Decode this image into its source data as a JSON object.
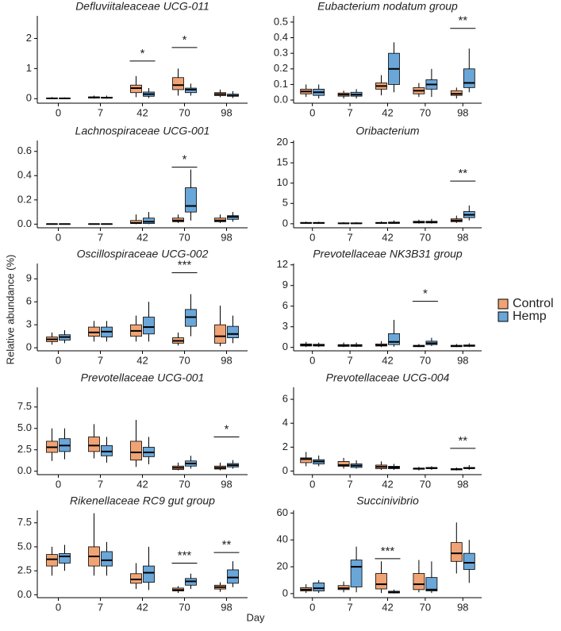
{
  "y_label": "Relative abundance (%)",
  "x_label": "Day",
  "legend": [
    {
      "name": "Control",
      "color": "#f0a374"
    },
    {
      "name": "Hemp",
      "color": "#6aa6d8"
    }
  ],
  "chart_data": [
    {
      "type": "box",
      "title": "Defluviitaleaceae UCG-011",
      "categories": [
        "0",
        "7",
        "42",
        "70",
        "98"
      ],
      "ylim": [
        -0.15,
        2.75
      ],
      "yticks": [
        0,
        1,
        2
      ],
      "series": [
        {
          "color": "#f0a374",
          "min": [
            0,
            0,
            0.05,
            0.1,
            0.05
          ],
          "q1": [
            0,
            0.02,
            0.2,
            0.3,
            0.1
          ],
          "median": [
            0.01,
            0.04,
            0.35,
            0.45,
            0.15
          ],
          "q3": [
            0.02,
            0.06,
            0.45,
            0.7,
            0.2
          ],
          "max": [
            0.05,
            0.1,
            0.75,
            1.0,
            0.3
          ]
        },
        {
          "color": "#6aa6d8",
          "min": [
            0,
            0,
            0.02,
            0.1,
            0.02
          ],
          "q1": [
            0,
            0.02,
            0.08,
            0.2,
            0.08
          ],
          "median": [
            0.01,
            0.03,
            0.15,
            0.3,
            0.1
          ],
          "q3": [
            0.02,
            0.05,
            0.22,
            0.35,
            0.15
          ],
          "max": [
            0.04,
            0.1,
            0.35,
            0.5,
            0.25
          ]
        }
      ],
      "annotations": [
        {
          "category": "42",
          "label": "*",
          "y": 1.25
        },
        {
          "category": "70",
          "label": "*",
          "y": 1.7
        }
      ]
    },
    {
      "type": "box",
      "title": "Eubacterium nodatum group",
      "categories": [
        "0",
        "7",
        "42",
        "70",
        "98"
      ],
      "ylim": [
        -0.02,
        0.54
      ],
      "yticks": [
        {
          "value": 0,
          "label": "0.0"
        },
        0.1,
        0.2,
        0.3,
        0.4,
        0.5
      ],
      "series": [
        {
          "color": "#f0a374",
          "min": [
            0.02,
            0.01,
            0.03,
            0.02,
            0.01
          ],
          "q1": [
            0.04,
            0.025,
            0.07,
            0.04,
            0.03
          ],
          "median": [
            0.055,
            0.035,
            0.09,
            0.06,
            0.04
          ],
          "q3": [
            0.07,
            0.045,
            0.11,
            0.08,
            0.06
          ],
          "max": [
            0.1,
            0.06,
            0.16,
            0.11,
            0.08
          ]
        },
        {
          "color": "#6aa6d8",
          "min": [
            0.01,
            0.01,
            0.05,
            0.02,
            0.05
          ],
          "q1": [
            0.03,
            0.025,
            0.1,
            0.07,
            0.08
          ],
          "median": [
            0.05,
            0.035,
            0.2,
            0.1,
            0.11
          ],
          "q3": [
            0.07,
            0.05,
            0.3,
            0.13,
            0.2
          ],
          "max": [
            0.1,
            0.07,
            0.37,
            0.2,
            0.33
          ]
        }
      ],
      "annotations": [
        {
          "category": "98",
          "label": "**",
          "y": 0.46
        }
      ]
    },
    {
      "type": "box",
      "title": "Lachnospiraceae UCG-001",
      "categories": [
        "0",
        "7",
        "42",
        "70",
        "98"
      ],
      "ylim": [
        -0.03,
        0.69
      ],
      "yticks": [
        {
          "value": 0,
          "label": "0.0"
        },
        0.2,
        0.4,
        0.6
      ],
      "series": [
        {
          "color": "#f0a374",
          "min": [
            0,
            0,
            0,
            0.01,
            0.01
          ],
          "q1": [
            0,
            0,
            0.005,
            0.02,
            0.02
          ],
          "median": [
            0.001,
            0.001,
            0.01,
            0.03,
            0.03
          ],
          "q3": [
            0.002,
            0.002,
            0.03,
            0.05,
            0.05
          ],
          "max": [
            0.004,
            0.005,
            0.08,
            0.08,
            0.08
          ]
        },
        {
          "color": "#6aa6d8",
          "min": [
            0,
            0,
            0,
            0.03,
            0.02
          ],
          "q1": [
            0,
            0,
            0.005,
            0.1,
            0.04
          ],
          "median": [
            0.001,
            0.001,
            0.02,
            0.15,
            0.06
          ],
          "q3": [
            0.002,
            0.002,
            0.05,
            0.3,
            0.07
          ],
          "max": [
            0.004,
            0.005,
            0.1,
            0.45,
            0.1
          ]
        }
      ],
      "annotations": [
        {
          "category": "70",
          "label": "*",
          "y": 0.47
        }
      ]
    },
    {
      "type": "box",
      "title": "Oribacterium",
      "categories": [
        "0",
        "7",
        "42",
        "70",
        "98"
      ],
      "ylim": [
        -1,
        20.5
      ],
      "yticks": [
        0,
        5,
        10,
        15,
        20
      ],
      "series": [
        {
          "color": "#f0a374",
          "min": [
            0,
            0,
            0,
            0.05,
            0.2
          ],
          "q1": [
            0.1,
            0.05,
            0.1,
            0.2,
            0.5
          ],
          "median": [
            0.2,
            0.1,
            0.2,
            0.4,
            0.8
          ],
          "q3": [
            0.3,
            0.2,
            0.3,
            0.6,
            1.2
          ],
          "max": [
            0.5,
            0.4,
            0.6,
            1,
            2
          ]
        },
        {
          "color": "#6aa6d8",
          "min": [
            0,
            0,
            0,
            0.05,
            0.8
          ],
          "q1": [
            0.1,
            0.05,
            0.1,
            0.2,
            1.5
          ],
          "median": [
            0.2,
            0.1,
            0.2,
            0.4,
            2.2
          ],
          "q3": [
            0.3,
            0.2,
            0.4,
            0.6,
            3
          ],
          "max": [
            0.5,
            0.4,
            0.8,
            1.2,
            4.5
          ]
        }
      ],
      "annotations": [
        {
          "category": "98",
          "label": "**",
          "y": 10.5
        }
      ]
    },
    {
      "type": "box",
      "title": "Oscillospiraceae UCG-002",
      "categories": [
        "0",
        "7",
        "42",
        "70",
        "98"
      ],
      "ylim": [
        -0.4,
        11
      ],
      "yticks": [
        0,
        3,
        6,
        9
      ],
      "series": [
        {
          "color": "#f0a374",
          "min": [
            0.4,
            0.8,
            0.8,
            0.3,
            0.2
          ],
          "q1": [
            0.8,
            1.5,
            1.5,
            0.6,
            0.6
          ],
          "median": [
            1.1,
            2,
            2.2,
            0.9,
            1.5
          ],
          "q3": [
            1.4,
            2.7,
            3,
            1.3,
            3
          ],
          "max": [
            2,
            3.5,
            4.2,
            2,
            5.5
          ]
        },
        {
          "color": "#6aa6d8",
          "min": [
            0.6,
            0.8,
            0.8,
            1.5,
            0.6
          ],
          "q1": [
            1,
            1.4,
            1.8,
            2.8,
            1.3
          ],
          "median": [
            1.4,
            2.1,
            2.7,
            4,
            1.8
          ],
          "q3": [
            1.7,
            2.7,
            4,
            5,
            2.8
          ],
          "max": [
            2.3,
            3.5,
            6,
            7,
            4.2
          ]
        }
      ],
      "annotations": [
        {
          "category": "70",
          "label": "***",
          "y": 9.8
        }
      ]
    },
    {
      "type": "box",
      "title": "Prevotellaceae NK3B31 group",
      "categories": [
        "0",
        "7",
        "42",
        "70",
        "98"
      ],
      "ylim": [
        -0.5,
        12.2
      ],
      "yticks": [
        0,
        3,
        6,
        9,
        12
      ],
      "series": [
        {
          "color": "#f0a374",
          "min": [
            0.05,
            0.05,
            0.05,
            0.05,
            0.05
          ],
          "q1": [
            0.2,
            0.15,
            0.2,
            0.1,
            0.1
          ],
          "median": [
            0.35,
            0.25,
            0.3,
            0.2,
            0.2
          ],
          "q3": [
            0.5,
            0.4,
            0.5,
            0.3,
            0.3
          ],
          "max": [
            0.8,
            0.7,
            0.9,
            0.5,
            0.5
          ]
        },
        {
          "color": "#6aa6d8",
          "min": [
            0.05,
            0.05,
            0.1,
            0.2,
            0.05
          ],
          "q1": [
            0.2,
            0.15,
            0.4,
            0.4,
            0.15
          ],
          "median": [
            0.3,
            0.25,
            0.8,
            0.6,
            0.25
          ],
          "q3": [
            0.45,
            0.4,
            2,
            0.9,
            0.35
          ],
          "max": [
            0.7,
            0.7,
            4,
            1.4,
            0.6
          ]
        }
      ],
      "annotations": [
        {
          "category": "70",
          "label": "*",
          "y": 6.7
        }
      ]
    },
    {
      "type": "box",
      "title": "Prevotellaceae UCG-001",
      "categories": [
        "0",
        "7",
        "42",
        "70",
        "98"
      ],
      "ylim": [
        -0.4,
        9.8
      ],
      "yticks": [
        {
          "value": 0,
          "label": "0.0"
        },
        2.5,
        {
          "value": 5,
          "label": "5.0"
        },
        7.5
      ],
      "series": [
        {
          "color": "#f0a374",
          "min": [
            1.2,
            1.5,
            0.5,
            0.1,
            0.1
          ],
          "q1": [
            2.2,
            2.3,
            1.3,
            0.2,
            0.25
          ],
          "median": [
            2.8,
            3,
            2.2,
            0.4,
            0.4
          ],
          "q3": [
            3.5,
            4,
            3.5,
            0.6,
            0.6
          ],
          "max": [
            5,
            5.5,
            6,
            1,
            1
          ]
        },
        {
          "color": "#6aa6d8",
          "min": [
            1.4,
            1,
            0.8,
            0.3,
            0.3
          ],
          "q1": [
            2.3,
            1.8,
            1.7,
            0.6,
            0.5
          ],
          "median": [
            3,
            2.3,
            2.2,
            0.9,
            0.7
          ],
          "q3": [
            3.8,
            3,
            2.8,
            1.2,
            0.9
          ],
          "max": [
            5,
            4,
            4,
            1.8,
            1.3
          ]
        }
      ],
      "annotations": [
        {
          "category": "98",
          "label": "*",
          "y": 4
        }
      ]
    },
    {
      "type": "box",
      "title": "Prevotellaceae UCG-004",
      "categories": [
        "0",
        "7",
        "42",
        "70",
        "98"
      ],
      "ylim": [
        -0.3,
        7
      ],
      "yticks": [
        0,
        2,
        4,
        6
      ],
      "series": [
        {
          "color": "#f0a374",
          "min": [
            0.4,
            0.2,
            0.1,
            0.05,
            0.05
          ],
          "q1": [
            0.7,
            0.4,
            0.2,
            0.15,
            0.1
          ],
          "median": [
            1,
            0.5,
            0.35,
            0.2,
            0.15
          ],
          "q3": [
            1.1,
            0.8,
            0.5,
            0.25,
            0.2
          ],
          "max": [
            1.6,
            1.1,
            0.8,
            0.35,
            0.3
          ]
        },
        {
          "color": "#6aa6d8",
          "min": [
            0.4,
            0.2,
            0.1,
            0.1,
            0.1
          ],
          "q1": [
            0.6,
            0.3,
            0.2,
            0.2,
            0.2
          ],
          "median": [
            0.8,
            0.45,
            0.3,
            0.25,
            0.25
          ],
          "q3": [
            0.95,
            0.6,
            0.4,
            0.3,
            0.3
          ],
          "max": [
            1.3,
            0.9,
            0.6,
            0.4,
            0.5
          ]
        }
      ],
      "annotations": [
        {
          "category": "98",
          "label": "**",
          "y": 1.9
        }
      ]
    },
    {
      "type": "box",
      "title": "Rikenellaceae RC9 gut group",
      "categories": [
        "0",
        "7",
        "42",
        "70",
        "98"
      ],
      "ylim": [
        -0.3,
        8.8
      ],
      "yticks": [
        {
          "value": 0,
          "label": "0.0"
        },
        2.5,
        {
          "value": 5,
          "label": "5.0"
        },
        7.5
      ],
      "series": [
        {
          "color": "#f0a374",
          "min": [
            2,
            2,
            0.6,
            0.2,
            0.3
          ],
          "q1": [
            3,
            3,
            1.2,
            0.4,
            0.6
          ],
          "median": [
            3.7,
            4,
            1.6,
            0.5,
            0.8
          ],
          "q3": [
            4.2,
            5,
            2.2,
            0.7,
            1
          ],
          "max": [
            5,
            8.5,
            3.3,
            0.9,
            1.3
          ]
        },
        {
          "color": "#6aa6d8",
          "min": [
            2.5,
            2,
            0.5,
            0.6,
            0.8
          ],
          "q1": [
            3.3,
            3,
            1.3,
            1,
            1.2
          ],
          "median": [
            4,
            3.6,
            2.3,
            1.4,
            1.8
          ],
          "q3": [
            4.3,
            4.5,
            3,
            1.7,
            2.6
          ],
          "max": [
            5.2,
            5.5,
            5,
            2.2,
            3.5
          ]
        }
      ],
      "annotations": [
        {
          "category": "70",
          "label": "***",
          "y": 3.3
        },
        {
          "category": "98",
          "label": "**",
          "y": 4.4
        }
      ]
    },
    {
      "type": "box",
      "title": "Succinivibrio",
      "categories": [
        "0",
        "7",
        "42",
        "70",
        "98"
      ],
      "ylim": [
        -3,
        62
      ],
      "yticks": [
        0,
        20,
        40,
        60
      ],
      "series": [
        {
          "color": "#f0a374",
          "min": [
            0.5,
            1,
            0.5,
            1,
            15
          ],
          "q1": [
            2,
            3,
            3.5,
            3,
            24
          ],
          "median": [
            3,
            4,
            7,
            7,
            30
          ],
          "q3": [
            4.5,
            6,
            15,
            15,
            38
          ],
          "max": [
            7,
            9,
            24,
            25,
            53
          ]
        },
        {
          "color": "#6aa6d8",
          "min": [
            0.5,
            1,
            0.2,
            0.5,
            8
          ],
          "q1": [
            2,
            5,
            0.5,
            2,
            18
          ],
          "median": [
            4,
            20,
            1,
            3,
            23
          ],
          "q3": [
            8,
            25,
            1.8,
            12,
            30
          ],
          "max": [
            10,
            35,
            3,
            24,
            40
          ]
        }
      ],
      "annotations": [
        {
          "category": "42",
          "label": "***",
          "y": 26
        }
      ]
    }
  ]
}
